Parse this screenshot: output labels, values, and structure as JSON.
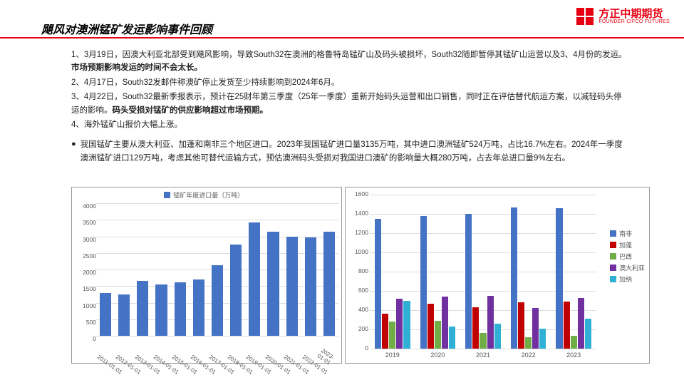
{
  "logo": {
    "cn": "方正中期期货",
    "en": "FOUNDER CIFCO FUTURES"
  },
  "title": "飓风对澳洲锰矿发运影响事件回顾",
  "para": [
    {
      "plain": "1、3月19日，因澳大利亚北部受到飓风影响，导致South32在澳洲的格鲁特岛锰矿山及码头被损坏，South32随即暂停其锰矿山运营以及3、4月份的发运。",
      "bold": "市场预期影响发运的时间不会太长。"
    },
    {
      "plain": "2、4月17日，South32发邮件称澳矿停止发货至少持续影响到2024年6月。",
      "bold": ""
    },
    {
      "plain": "3、4月22日，South32最新季报表示，预计在25财年第三季度（25年一季度）重新开始码头运营和出口销售，同时正在评估替代航运方案，以减轻码头停运的影响。",
      "bold": "码头受损对锰矿的供应影响超过市场预期。"
    },
    {
      "plain": "4、海外锰矿山报价大幅上涨。",
      "bold": ""
    }
  ],
  "bullet": "我国锰矿主要从澳大利亚、加蓬和南非三个地区进口。2023年我国锰矿进口量3135万吨，其中进口澳洲锰矿524万吨，占比16.7%左右。2024年一季度澳洲锰矿进口129万吨，考虑其他可替代运输方式，预估澳洲码头受损对我国进口澳矿的影响量大概280万吨，占去年总进口量9%左右。",
  "chart1": {
    "type": "bar",
    "legend_label": "锰矿年度进口量（万吨）",
    "ylim": [
      0,
      4000
    ],
    "ytick_step": 500,
    "categories": [
      "2011-01-01",
      "2012-01-01",
      "2013-01-01",
      "2014-01-01",
      "2015-01-01",
      "2016-01-01",
      "2017-01-01",
      "2018-01-01",
      "2019-01-01",
      "2020-01-01",
      "2021-01-01",
      "2022-01-01",
      "2023-01-01"
    ],
    "values": [
      1300,
      1250,
      1650,
      1550,
      1620,
      1700,
      2120,
      2750,
      3420,
      3150,
      3000,
      2970,
      3135
    ],
    "bar_color": "#4472c4",
    "grid_color": "#dddddd",
    "background_color": "#ffffff",
    "label_fontsize": 8.5
  },
  "chart2": {
    "type": "grouped-bar",
    "ylim": [
      0,
      1600
    ],
    "ytick_step": 200,
    "categories": [
      "2019",
      "2020",
      "2021",
      "2022",
      "2023"
    ],
    "series": [
      {
        "name": "南非",
        "color": "#4472c4",
        "values": [
          1350,
          1380,
          1400,
          1470,
          1460
        ]
      },
      {
        "name": "加蓬",
        "color": "#c00000",
        "values": [
          360,
          470,
          430,
          480,
          490
        ]
      },
      {
        "name": "巴西",
        "color": "#70ad47",
        "values": [
          280,
          290,
          160,
          120,
          130
        ]
      },
      {
        "name": "澳大利亚",
        "color": "#7030a0",
        "values": [
          520,
          540,
          550,
          420,
          524
        ]
      },
      {
        "name": "加纳",
        "color": "#31b0d5",
        "values": [
          500,
          230,
          260,
          210,
          310
        ]
      }
    ],
    "grid_color": "#dddddd",
    "background_color": "#ffffff",
    "label_fontsize": 8.5
  }
}
